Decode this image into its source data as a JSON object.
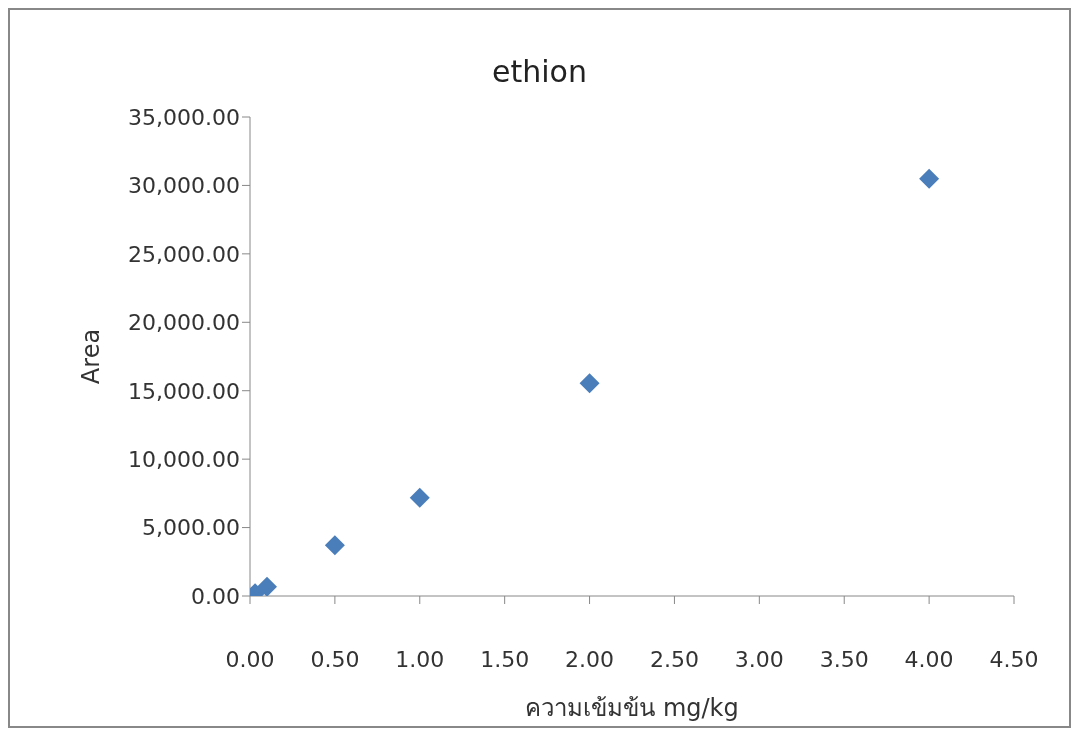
{
  "chart_data": {
    "type": "scatter",
    "title": "ethion",
    "xlabel": "ความเข้มข้น mg/kg",
    "ylabel": "Area",
    "x": [
      0.03,
      0.1,
      0.5,
      1,
      2,
      4
    ],
    "series": [
      {
        "color": "#4a7ebb",
        "values": [
          200,
          670,
          3700,
          7180,
          15540,
          30490
        ]
      }
    ],
    "xlim": [
      0,
      4.5
    ],
    "xticks": [
      {
        "value": 0,
        "label": "0.00"
      },
      {
        "value": 0.5,
        "label": "0.50"
      },
      {
        "value": 1,
        "label": "1.00"
      },
      {
        "value": 1.5,
        "label": "1.50"
      },
      {
        "value": 2,
        "label": "2.00"
      },
      {
        "value": 2.5,
        "label": "2.50"
      },
      {
        "value": 3,
        "label": "3.00"
      },
      {
        "value": 3.5,
        "label": "3.50"
      },
      {
        "value": 4,
        "label": "4.00"
      },
      {
        "value": 4.5,
        "label": "4.50"
      }
    ],
    "ylim": [
      0,
      35000
    ],
    "yticks": [
      {
        "value": 0,
        "label": "0.00"
      },
      {
        "value": 5000,
        "label": "5,000.00"
      },
      {
        "value": 10000,
        "label": "10,000.00"
      },
      {
        "value": 15000,
        "label": "15,000.00"
      },
      {
        "value": 20000,
        "label": "20,000.00"
      },
      {
        "value": 25000,
        "label": "25,000.00"
      },
      {
        "value": 30000,
        "label": "30,000.00"
      },
      {
        "value": 35000,
        "label": "35,000.00"
      }
    ],
    "marker": "diamond"
  }
}
